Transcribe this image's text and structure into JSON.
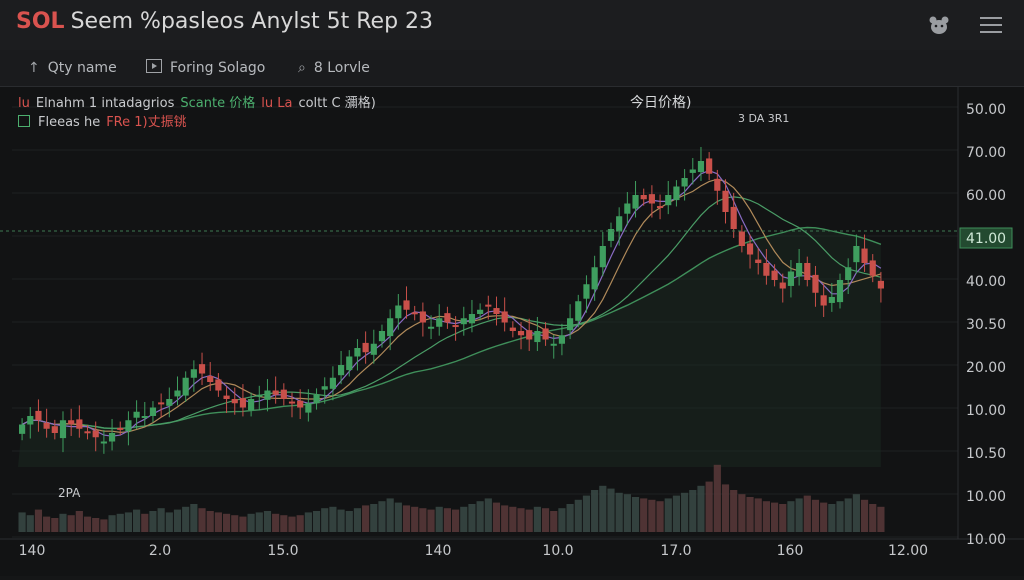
{
  "header": {
    "symbol": "SOL",
    "title": "Seem %pasleos Anylst 5t Rep 23",
    "icons": [
      "bear-icon",
      "hamburger-menu-icon"
    ]
  },
  "toolbar": {
    "items": [
      {
        "icon": "arrow-up-icon",
        "label": "Qty name"
      },
      {
        "icon": "play-box-icon",
        "label": "Foring Solago"
      },
      {
        "icon": "search-icon",
        "label": "8 Lorvle"
      }
    ]
  },
  "legend": {
    "row1": [
      {
        "text": "lu",
        "color": "#d9534f"
      },
      {
        "text": "Elnahm 1 intadagrios",
        "color": "#c9cbce"
      },
      {
        "text": "Scante 价格",
        "color": "#4caf6e"
      },
      {
        "text": "lu La",
        "color": "#d9534f"
      },
      {
        "text": "coltt C 瀰格)",
        "color": "#c9cbce"
      }
    ],
    "row2": [
      {
        "text": "Fleeas he",
        "color": "#c9cbce"
      },
      {
        "text": "FRe 1)丈振铫",
        "color": "#d9534f"
      }
    ],
    "center_label": "今日价格)",
    "peak_label": "3 DA 3R1",
    "volume_label": "2PA"
  },
  "chart_data": {
    "type": "candlestick",
    "y_axis_labels": [
      "50.00",
      "70.00",
      "60.00",
      "41.00",
      "40.00",
      "30.50",
      "20.00",
      "10.00",
      "10.50",
      "10.00",
      "10.00"
    ],
    "highlight_label": "41.00",
    "x_axis_labels": [
      "140",
      "2.0",
      "15.0",
      "140",
      "10.0",
      "17.0",
      "160",
      "12.00"
    ],
    "closes": [
      10,
      12,
      11,
      9,
      8,
      11,
      10,
      9,
      8,
      7,
      6,
      8,
      9,
      11,
      13,
      12,
      14,
      15,
      16,
      18,
      21,
      23,
      22,
      20,
      18,
      16,
      15,
      14,
      16,
      17,
      18,
      17,
      16,
      15,
      14,
      15,
      17,
      19,
      21,
      24,
      26,
      28,
      27,
      29,
      32,
      35,
      38,
      37,
      36,
      34,
      33,
      35,
      34,
      33,
      35,
      36,
      37,
      38,
      36,
      34,
      32,
      31,
      30,
      32,
      30,
      29,
      31,
      35,
      39,
      43,
      47,
      52,
      56,
      59,
      62,
      64,
      63,
      62,
      61,
      64,
      66,
      68,
      70,
      72,
      69,
      65,
      60,
      56,
      52,
      50,
      48,
      45,
      44,
      42,
      46,
      48,
      44,
      41,
      38,
      40,
      44,
      47,
      52,
      48,
      45,
      42
    ],
    "opens_offset": "derived",
    "volume": [
      14,
      12,
      16,
      11,
      10,
      13,
      12,
      15,
      11,
      10,
      9,
      12,
      13,
      14,
      16,
      13,
      15,
      17,
      14,
      16,
      18,
      20,
      17,
      15,
      14,
      13,
      12,
      11,
      13,
      14,
      15,
      13,
      12,
      11,
      12,
      14,
      15,
      17,
      18,
      16,
      15,
      17,
      19,
      20,
      22,
      24,
      21,
      19,
      18,
      17,
      16,
      18,
      17,
      16,
      18,
      20,
      22,
      24,
      21,
      19,
      18,
      17,
      16,
      18,
      17,
      15,
      17,
      20,
      23,
      26,
      30,
      33,
      31,
      28,
      27,
      25,
      24,
      23,
      22,
      24,
      26,
      28,
      30,
      33,
      36,
      48,
      34,
      30,
      27,
      25,
      24,
      22,
      21,
      20,
      22,
      24,
      26,
      23,
      21,
      20,
      22,
      24,
      27,
      23,
      20,
      18
    ]
  }
}
